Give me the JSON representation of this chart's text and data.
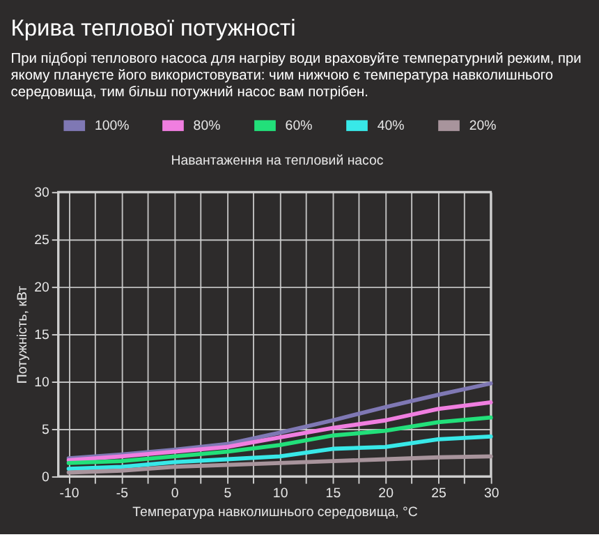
{
  "chart_data": {
    "type": "line",
    "title": "Крива теплової потужності",
    "subtitle": "При підборі теплового насоса для нагріву води враховуйте температурний режим, при якому плануєте його використовувати: чим нижчою є температура навколишнього середовища, тим більш потужний насос вам потрібен.",
    "xlabel": "Температура навколишнього середовища, °C",
    "ylabel": "Потужність, кВт",
    "legend_title": "Навантаження на тепловий насос",
    "x": [
      -10,
      -5,
      0,
      5,
      10,
      15,
      20,
      25,
      30
    ],
    "series": [
      {
        "name": "100%",
        "color": "#7f78b4",
        "values": [
          1.9,
          2.3,
          2.8,
          3.4,
          4.6,
          5.9,
          7.3,
          8.6,
          9.8
        ]
      },
      {
        "name": "80%",
        "color": "#f07ee0",
        "values": [
          1.7,
          2.1,
          2.6,
          3.1,
          4.1,
          5.1,
          5.9,
          7.1,
          7.8
        ]
      },
      {
        "name": "60%",
        "color": "#22e07a",
        "values": [
          1.4,
          1.6,
          2.1,
          2.6,
          3.3,
          4.3,
          4.8,
          5.7,
          6.2
        ]
      },
      {
        "name": "40%",
        "color": "#38e8e8",
        "values": [
          0.8,
          1.0,
          1.5,
          1.8,
          2.1,
          2.9,
          3.1,
          3.9,
          4.2
        ]
      },
      {
        "name": "20%",
        "color": "#a8949c",
        "values": [
          0.4,
          0.6,
          1.0,
          1.2,
          1.4,
          1.6,
          1.8,
          2.0,
          2.1
        ]
      }
    ],
    "xlim": [
      -11,
      30
    ],
    "ylim": [
      0,
      30
    ],
    "xticks": [
      -10,
      {
        "value": -7.5,
        "label": null
      },
      -5,
      {
        "value": -2.5,
        "label": null
      },
      0,
      {
        "value": 2.5,
        "label": null
      },
      5,
      {
        "value": 7.5,
        "label": null
      },
      10,
      {
        "value": 12.5,
        "label": null
      },
      15,
      {
        "value": 17.5,
        "label": null
      },
      20,
      {
        "value": 22.5,
        "label": null
      },
      25,
      {
        "value": 27.5,
        "label": null
      },
      30
    ],
    "yticks": [
      0,
      5,
      10,
      15,
      20,
      25,
      30
    ],
    "grid": true,
    "legend": "top",
    "marker": "none",
    "line_style": "solid"
  }
}
